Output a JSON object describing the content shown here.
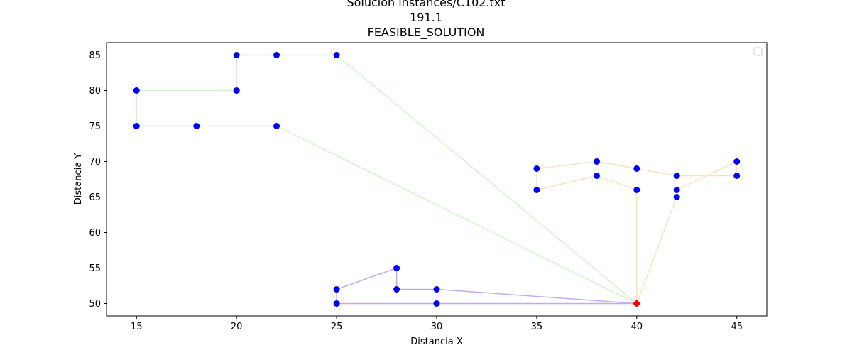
{
  "chart_data": {
    "type": "line",
    "title": [
      "Solución instances/C102.txt",
      "191.1",
      "FEASIBLE_SOLUTION"
    ],
    "xlabel": "Distancia X",
    "ylabel": "Distancia Y",
    "xlim": [
      13.5,
      46.5
    ],
    "ylim": [
      48.25,
      86.75
    ],
    "xticks": [
      15,
      20,
      25,
      30,
      35,
      40,
      45
    ],
    "yticks": [
      50,
      55,
      60,
      65,
      70,
      75,
      80,
      85
    ],
    "grid": false,
    "legend": "top-right (empty)",
    "depot": {
      "x": 40,
      "y": 50,
      "color": "#ff0000",
      "marker": "diamond"
    },
    "customer_color": "#0000ff",
    "series": [
      {
        "color": "#ccf5c8",
        "points": [
          [
            40,
            50
          ],
          [
            22,
            75
          ],
          [
            18,
            75
          ],
          [
            15,
            75
          ],
          [
            15,
            80
          ],
          [
            20,
            80
          ],
          [
            20,
            85
          ],
          [
            22,
            85
          ],
          [
            25,
            85
          ],
          [
            40,
            50
          ]
        ]
      },
      {
        "color": "#f5e4c2",
        "points": [
          [
            40,
            50
          ],
          [
            40,
            66
          ],
          [
            38,
            68
          ],
          [
            35,
            66
          ],
          [
            35,
            69
          ],
          [
            38,
            70
          ],
          [
            40,
            69
          ],
          [
            42,
            68
          ],
          [
            45,
            68
          ],
          [
            45,
            70
          ],
          [
            42,
            66
          ],
          [
            42,
            65
          ],
          [
            40,
            50
          ]
        ]
      },
      {
        "color": "#c5a9f5",
        "points": [
          [
            40,
            50
          ],
          [
            30,
            52
          ],
          [
            28,
            52
          ],
          [
            28,
            55
          ],
          [
            25,
            52
          ],
          [
            25,
            50
          ],
          [
            30,
            50
          ],
          [
            40,
            50
          ]
        ]
      }
    ]
  }
}
